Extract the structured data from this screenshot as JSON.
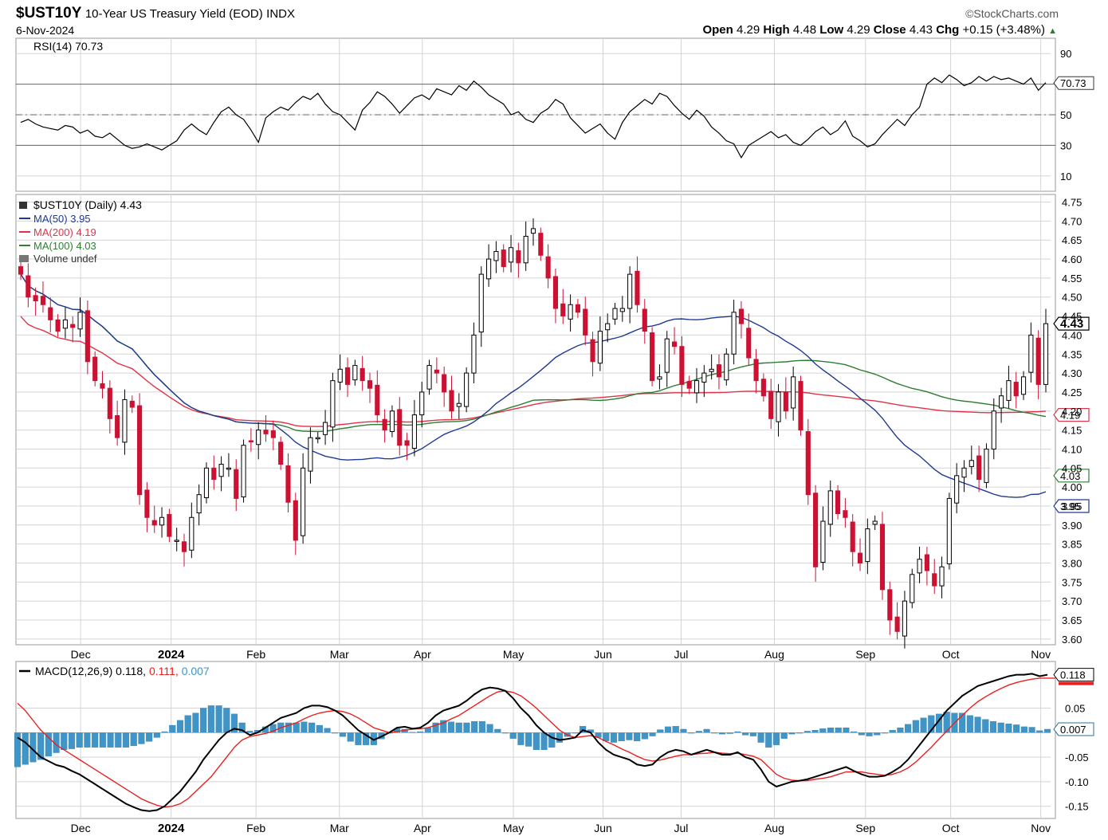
{
  "header": {
    "symbol": "$UST10Y",
    "description": "10-Year US Treasury Yield (EOD)",
    "exchange": "INDX",
    "date": "6-Nov-2024",
    "brand": "©StockCharts.com",
    "open_label": "Open",
    "open": "4.29",
    "high_label": "High",
    "high": "4.48",
    "low_label": "Low",
    "low": "4.29",
    "close_label": "Close",
    "close": "4.43",
    "chg_label": "Chg",
    "chg": "+0.15 (+3.48%)"
  },
  "colors": {
    "up": "#000000",
    "down": "#cc1133",
    "ma50": "#1f3a93",
    "ma200": "#e0334a",
    "ma100": "#2e7d32",
    "macd": "#000000",
    "signal": "#e82020",
    "hist": "#3f95c8",
    "grid": "#d4d4d4"
  },
  "chart_data": [
    {
      "type": "line",
      "panel": "RSI",
      "legend": "RSI(14) 70.73",
      "series": [
        {
          "name": "RSI(14)",
          "last": 70.73,
          "values": [
            45,
            47,
            44,
            42,
            41,
            40,
            43,
            42,
            38,
            40,
            36,
            35,
            38,
            34,
            30,
            28,
            29,
            31,
            29,
            27,
            30,
            33,
            40,
            44,
            40,
            37,
            45,
            52,
            55,
            50,
            47,
            40,
            32,
            48,
            52,
            55,
            53,
            58,
            62,
            60,
            64,
            57,
            52,
            50,
            45,
            40,
            53,
            58,
            65,
            62,
            57,
            51,
            56,
            61,
            63,
            60,
            67,
            65,
            63,
            69,
            66,
            72,
            68,
            63,
            60,
            57,
            50,
            52,
            47,
            45,
            51,
            54,
            60,
            57,
            48,
            43,
            38,
            41,
            44,
            38,
            34,
            45,
            52,
            56,
            60,
            57,
            64,
            62,
            56,
            51,
            47,
            53,
            49,
            42,
            38,
            33,
            31,
            22,
            30,
            33,
            36,
            39,
            35,
            37,
            32,
            30,
            34,
            39,
            42,
            37,
            40,
            46,
            36,
            33,
            29,
            31,
            37,
            42,
            47,
            43,
            50,
            55,
            70,
            74,
            71,
            76,
            73,
            69,
            71,
            75,
            72,
            75,
            73,
            74,
            72,
            70,
            74,
            66,
            71
          ]
        }
      ],
      "levels": [
        30,
        50,
        70
      ],
      "ylim": [
        0,
        100
      ],
      "y_ticks": [
        10,
        30,
        50,
        70.73,
        90
      ],
      "tick_labels": [
        "10",
        "30",
        "50",
        "70.73",
        "90"
      ]
    },
    {
      "type": "candlestick",
      "panel": "Price",
      "legend": {
        "title": "$UST10Y (Daily) 4.43",
        "ma50": "MA(50) 3.95",
        "ma200": "MA(200) 4.19",
        "ma100": "MA(100) 4.03",
        "volume": "Volume undef"
      },
      "x_labels": [
        "Dec",
        "2024",
        "Feb",
        "Mar",
        "Apr",
        "May",
        "Jun",
        "Jul",
        "Aug",
        "Sep",
        "Oct",
        "Nov"
      ],
      "x_label_positions": [
        0.0625,
        0.15,
        0.232,
        0.3126,
        0.3928,
        0.4808,
        0.5674,
        0.6429,
        0.733,
        0.8211,
        0.9034,
        0.9905
      ],
      "ylim": [
        3.585,
        4.77
      ],
      "y_ticks": [
        3.6,
        3.65,
        3.7,
        3.75,
        3.8,
        3.85,
        3.9,
        3.95,
        4.0,
        4.05,
        4.1,
        4.15,
        4.2,
        4.25,
        4.3,
        4.35,
        4.4,
        4.45,
        4.5,
        4.55,
        4.6,
        4.65,
        4.7,
        4.75
      ],
      "tick_labels": [
        "3.60",
        "3.65",
        "3.70",
        "3.75",
        "3.80",
        "3.85",
        "3.90",
        "3.95",
        "4.00",
        "4.05",
        "4.10",
        "4.15",
        "4.20",
        "4.25",
        "4.30",
        "4.35",
        "4.40",
        "4.45",
        "4.50",
        "4.55",
        "4.60",
        "4.65",
        "4.70",
        "4.75"
      ],
      "close": [
        4.56,
        4.5,
        4.49,
        4.48,
        4.44,
        4.41,
        4.44,
        4.42,
        4.46,
        4.33,
        4.28,
        4.26,
        4.18,
        4.13,
        4.23,
        4.21,
        3.98,
        3.92,
        3.9,
        3.92,
        3.87,
        3.86,
        3.83,
        3.92,
        3.98,
        4.05,
        4.02,
        4.06,
        4.05,
        3.97,
        4.11,
        4.12,
        4.15,
        4.14,
        4.13,
        4.06,
        3.96,
        3.86,
        4.05,
        4.13,
        4.13,
        4.17,
        4.28,
        4.31,
        4.27,
        4.32,
        4.28,
        4.26,
        4.19,
        4.15,
        4.2,
        4.11,
        4.11,
        4.19,
        4.25,
        4.32,
        4.3,
        4.25,
        4.2,
        4.22,
        4.3,
        4.4,
        4.56,
        4.6,
        4.62,
        4.58,
        4.63,
        4.59,
        4.66,
        4.68,
        4.61,
        4.55,
        4.47,
        4.45,
        4.48,
        4.46,
        4.4,
        4.33,
        4.41,
        4.43,
        4.47,
        4.47,
        4.56,
        4.48,
        4.41,
        4.28,
        4.29,
        4.39,
        4.37,
        4.27,
        4.26,
        4.28,
        4.3,
        4.31,
        4.29,
        4.35,
        4.46,
        4.43,
        4.34,
        4.28,
        4.24,
        4.18,
        4.25,
        4.2,
        4.29,
        4.15,
        3.98,
        3.79,
        3.91,
        3.99,
        3.93,
        3.92,
        3.83,
        3.8,
        3.89,
        3.91,
        3.73,
        3.65,
        3.62,
        3.7,
        3.77,
        3.81,
        3.78,
        3.74,
        3.79,
        3.97,
        4.03,
        4.05,
        4.07,
        4.02,
        4.1,
        4.2,
        4.24,
        4.28,
        4.24,
        4.29,
        4.4,
        4.27,
        4.43
      ],
      "series": [
        {
          "name": "MA(50)",
          "last": 3.95
        },
        {
          "name": "MA(200)",
          "last": 4.19
        },
        {
          "name": "MA(100)",
          "last": 4.03
        }
      ],
      "last_price": 4.43
    },
    {
      "type": "line",
      "panel": "MACD",
      "legend": {
        "name": "MACD(12,26,9)",
        "macd": "0.118",
        "signal": "0.111",
        "hist": "0.007"
      },
      "x_labels": [
        "Dec",
        "2024",
        "Feb",
        "Mar",
        "Apr",
        "May",
        "Jun",
        "Jul",
        "Aug",
        "Sep",
        "Oct",
        "Nov"
      ],
      "ylim": [
        -0.175,
        0.145
      ],
      "y_ticks": [
        -0.15,
        -0.1,
        -0.05,
        0.05
      ],
      "tick_labels": [
        "-0.15",
        "-0.10",
        "-0.05",
        "0.05"
      ],
      "right_labels": [
        "0.118",
        "0.007"
      ],
      "series": [
        {
          "name": "MACD",
          "last": 0.118,
          "values": [
            -0.01,
            -0.02,
            -0.035,
            -0.05,
            -0.058,
            -0.066,
            -0.07,
            -0.078,
            -0.085,
            -0.095,
            -0.105,
            -0.115,
            -0.125,
            -0.135,
            -0.145,
            -0.152,
            -0.158,
            -0.16,
            -0.158,
            -0.15,
            -0.135,
            -0.12,
            -0.1,
            -0.08,
            -0.055,
            -0.035,
            -0.015,
            0.0,
            0.008,
            0.005,
            -0.005,
            0.0,
            0.01,
            0.02,
            0.03,
            0.035,
            0.04,
            0.05,
            0.055,
            0.055,
            0.052,
            0.045,
            0.035,
            0.02,
            0.005,
            -0.005,
            -0.015,
            -0.008,
            0.0,
            0.01,
            0.012,
            0.008,
            0.01,
            0.02,
            0.035,
            0.045,
            0.05,
            0.055,
            0.065,
            0.078,
            0.088,
            0.092,
            0.09,
            0.085,
            0.07,
            0.05,
            0.035,
            0.015,
            0.0,
            -0.01,
            -0.015,
            -0.013,
            -0.01,
            0.005,
            0.0,
            -0.02,
            -0.035,
            -0.045,
            -0.05,
            -0.055,
            -0.065,
            -0.068,
            -0.065,
            -0.05,
            -0.04,
            -0.035,
            -0.038,
            -0.045,
            -0.04,
            -0.035,
            -0.04,
            -0.045,
            -0.045,
            -0.04,
            -0.05,
            -0.055,
            -0.075,
            -0.1,
            -0.11,
            -0.105,
            -0.1,
            -0.098,
            -0.095,
            -0.09,
            -0.085,
            -0.08,
            -0.075,
            -0.07,
            -0.078,
            -0.085,
            -0.09,
            -0.09,
            -0.088,
            -0.08,
            -0.07,
            -0.055,
            -0.035,
            -0.015,
            0.005,
            0.025,
            0.045,
            0.06,
            0.075,
            0.085,
            0.095,
            0.1,
            0.105,
            0.11,
            0.115,
            0.118,
            0.118,
            0.12,
            0.115,
            0.118
          ]
        },
        {
          "name": "Signal",
          "last": 0.111,
          "values": [
            0.06,
            0.045,
            0.025,
            0.005,
            -0.01,
            -0.025,
            -0.035,
            -0.045,
            -0.055,
            -0.065,
            -0.075,
            -0.085,
            -0.095,
            -0.105,
            -0.115,
            -0.125,
            -0.135,
            -0.142,
            -0.148,
            -0.152,
            -0.15,
            -0.145,
            -0.135,
            -0.12,
            -0.105,
            -0.09,
            -0.07,
            -0.05,
            -0.03,
            -0.015,
            -0.008,
            -0.005,
            -0.002,
            0.003,
            0.01,
            0.015,
            0.02,
            0.028,
            0.035,
            0.04,
            0.043,
            0.045,
            0.043,
            0.038,
            0.03,
            0.02,
            0.01,
            0.005,
            0.0,
            0.002,
            0.005,
            0.007,
            0.008,
            0.01,
            0.015,
            0.02,
            0.028,
            0.035,
            0.045,
            0.055,
            0.065,
            0.075,
            0.083,
            0.085,
            0.082,
            0.075,
            0.063,
            0.05,
            0.035,
            0.02,
            0.005,
            -0.005,
            -0.01,
            -0.008,
            -0.006,
            -0.01,
            -0.018,
            -0.025,
            -0.033,
            -0.04,
            -0.048,
            -0.055,
            -0.058,
            -0.056,
            -0.052,
            -0.048,
            -0.045,
            -0.045,
            -0.043,
            -0.042,
            -0.04,
            -0.042,
            -0.043,
            -0.042,
            -0.045,
            -0.048,
            -0.055,
            -0.07,
            -0.085,
            -0.093,
            -0.097,
            -0.098,
            -0.098,
            -0.095,
            -0.093,
            -0.09,
            -0.085,
            -0.08,
            -0.08,
            -0.08,
            -0.083,
            -0.085,
            -0.087,
            -0.085,
            -0.08,
            -0.072,
            -0.06,
            -0.045,
            -0.03,
            -0.013,
            0.003,
            0.02,
            0.035,
            0.05,
            0.063,
            0.073,
            0.082,
            0.09,
            0.097,
            0.102,
            0.106,
            0.109,
            0.111,
            0.111,
            0.111
          ]
        }
      ],
      "histogram": {
        "name": "Histogram",
        "last": 0.007
      }
    }
  ]
}
